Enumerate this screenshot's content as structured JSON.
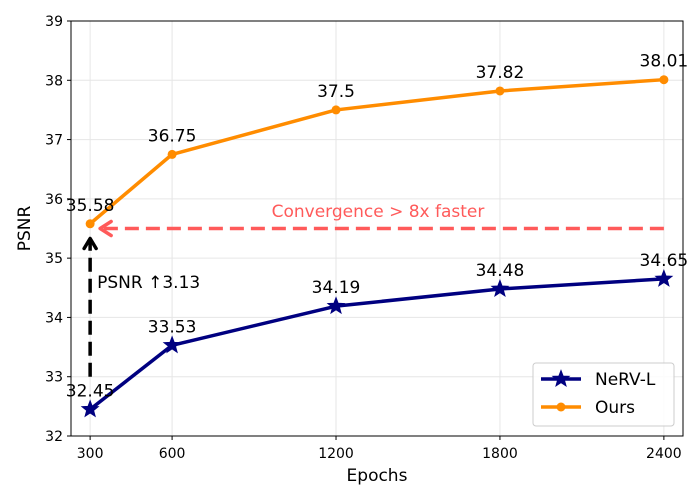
{
  "chart_data": {
    "type": "line",
    "title": "",
    "xlabel": "Epochs",
    "ylabel": "PSNR",
    "x": [
      300,
      600,
      1200,
      1800,
      2400
    ],
    "xticks": [
      "300",
      "600",
      "1200",
      "1800",
      "2400"
    ],
    "xlim": [
      230,
      2470
    ],
    "ylim": [
      32,
      39
    ],
    "yticks": [
      "32",
      "33",
      "34",
      "35",
      "36",
      "37",
      "38",
      "39"
    ],
    "grid": true,
    "legend_position": "bottom-right",
    "series": [
      {
        "name": "NeRV-L",
        "values": [
          32.45,
          33.53,
          34.19,
          34.48,
          34.65
        ],
        "labels": [
          "32.45",
          "33.53",
          "34.19",
          "34.48",
          "34.65"
        ],
        "color": "#000080",
        "marker": "star"
      },
      {
        "name": "Ours",
        "values": [
          35.58,
          36.75,
          37.5,
          37.82,
          38.01
        ],
        "labels": [
          "35.58",
          "36.75",
          "37.5",
          "37.82",
          "38.01"
        ],
        "color": "#ff8c00",
        "marker": "circle"
      }
    ],
    "annotations": {
      "convergence": {
        "text": "Convergence > 8x faster",
        "color": "#ff5a5a",
        "y": 35.5,
        "x_from": 2400,
        "x_to": 300
      },
      "psnr_gain": {
        "text": "PSNR ↑3.13",
        "color": "#000000",
        "x": 300,
        "y_from": 33.0,
        "y_to": 35.45
      }
    }
  }
}
